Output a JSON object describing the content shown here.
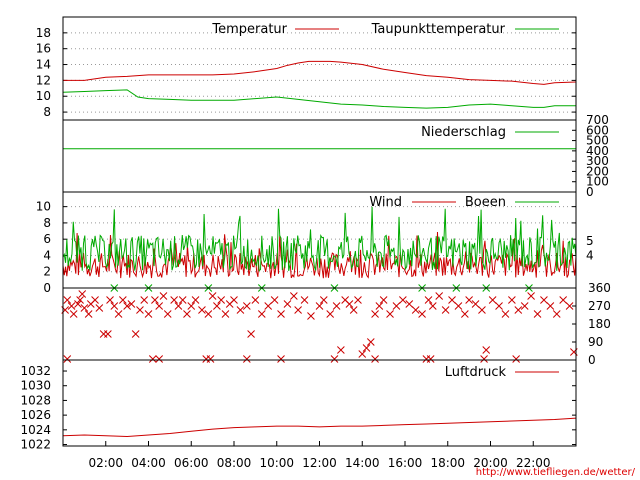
{
  "source_url": "http://www.tiefliegen.de/wetter/",
  "colors": {
    "red": "#cc0000",
    "green": "#00aa00",
    "grid": "#999999",
    "frame": "#000000"
  },
  "x_axis": {
    "unit": "hours",
    "range": [
      0,
      24
    ],
    "ticks": [
      {
        "h": 2,
        "label": "02:00"
      },
      {
        "h": 4,
        "label": "04:00"
      },
      {
        "h": 6,
        "label": "06:00"
      },
      {
        "h": 8,
        "label": "08:00"
      },
      {
        "h": 10,
        "label": "10:00"
      },
      {
        "h": 12,
        "label": "12:00"
      },
      {
        "h": 14,
        "label": "14:00"
      },
      {
        "h": 16,
        "label": "16:00"
      },
      {
        "h": 18,
        "label": "18:00"
      },
      {
        "h": 20,
        "label": "20:00"
      },
      {
        "h": 22,
        "label": "22:00"
      }
    ]
  },
  "chart_data": [
    {
      "type": "line",
      "id": "temp",
      "ylim": [
        7,
        20
      ],
      "yticks": [
        8,
        10,
        12,
        14,
        16,
        18
      ],
      "grid": true,
      "legend_position": "top-right",
      "series": [
        {
          "name": "Temperatur",
          "color": "#cc0000",
          "x": [
            0,
            1,
            2,
            3,
            4,
            5,
            6,
            7,
            8,
            9,
            10,
            10.5,
            11,
            11.5,
            12,
            12.5,
            13,
            14,
            15,
            16,
            17,
            18,
            19,
            20,
            21,
            22,
            22.5,
            23,
            24
          ],
          "y": [
            12.0,
            12.0,
            12.4,
            12.5,
            12.7,
            12.7,
            12.7,
            12.7,
            12.8,
            13.1,
            13.5,
            13.9,
            14.2,
            14.4,
            14.4,
            14.4,
            14.3,
            14.0,
            13.4,
            13.0,
            12.6,
            12.4,
            12.1,
            12.0,
            11.9,
            11.6,
            11.5,
            11.7,
            11.8
          ]
        },
        {
          "name": "Taupunkttemperatur",
          "color": "#00aa00",
          "x": [
            0,
            1,
            2,
            3,
            3.5,
            4,
            5,
            6,
            7,
            8,
            9,
            10,
            11,
            12,
            13,
            14,
            15,
            16,
            17,
            18,
            19,
            20,
            21,
            22,
            22.5,
            23,
            24
          ],
          "y": [
            10.5,
            10.6,
            10.7,
            10.8,
            9.9,
            9.7,
            9.6,
            9.5,
            9.5,
            9.5,
            9.7,
            9.9,
            9.6,
            9.3,
            9.0,
            8.9,
            8.7,
            8.6,
            8.5,
            8.6,
            8.9,
            9.0,
            8.8,
            8.6,
            8.6,
            8.8,
            8.8
          ]
        }
      ]
    },
    {
      "type": "line",
      "id": "rain",
      "ylim": [
        0,
        700
      ],
      "yticks": [
        0,
        100,
        200,
        300,
        400,
        500,
        600,
        700
      ],
      "grid": false,
      "legend_position": "top-right",
      "series": [
        {
          "name": "Niederschlag",
          "color": "#00aa00",
          "x": [
            0,
            24
          ],
          "y": [
            420,
            420
          ]
        }
      ]
    },
    {
      "type": "line",
      "id": "wind",
      "ylim": [
        0,
        11.8
      ],
      "yticks": [
        0,
        2,
        4,
        6,
        8,
        10
      ],
      "right_labels": [
        {
          "value": 4,
          "label": "4"
        },
        {
          "value": 5.8,
          "label": "5"
        }
      ],
      "grid": true,
      "legend_position": "top-right",
      "series": [
        {
          "name": "Wind",
          "color": "#cc0000",
          "pattern": "noisy",
          "mean": 2.8,
          "amplitude": 1.6
        },
        {
          "name": "Boeen",
          "color": "#00aa00",
          "pattern": "noisy",
          "mean": 4.3,
          "amplitude": 2.2
        }
      ]
    },
    {
      "type": "scatter",
      "id": "direction",
      "ylim": [
        0,
        360
      ],
      "right_ticks": [
        0,
        90,
        180,
        270,
        360
      ],
      "grid": false,
      "marker": "x",
      "color": "#cc0000",
      "points": [
        [
          0.1,
          250
        ],
        [
          0.2,
          300
        ],
        [
          0.4,
          270
        ],
        [
          0.5,
          230
        ],
        [
          0.7,
          280
        ],
        [
          0.8,
          300
        ],
        [
          0.9,
          330
        ],
        [
          1.0,
          260
        ],
        [
          1.2,
          230
        ],
        [
          1.3,
          280
        ],
        [
          1.5,
          300
        ],
        [
          1.7,
          260
        ],
        [
          1.9,
          130
        ],
        [
          2.1,
          130
        ],
        [
          2.2,
          300
        ],
        [
          2.4,
          270
        ],
        [
          2.6,
          230
        ],
        [
          2.8,
          300
        ],
        [
          3.0,
          270
        ],
        [
          3.2,
          280
        ],
        [
          3.4,
          130
        ],
        [
          3.6,
          250
        ],
        [
          3.8,
          300
        ],
        [
          4.0,
          230
        ],
        [
          4.3,
          300
        ],
        [
          4.5,
          270
        ],
        [
          4.7,
          320
        ],
        [
          4.9,
          230
        ],
        [
          5.2,
          300
        ],
        [
          5.4,
          270
        ],
        [
          5.6,
          300
        ],
        [
          5.8,
          230
        ],
        [
          6.0,
          270
        ],
        [
          6.2,
          300
        ],
        [
          6.5,
          250
        ],
        [
          6.8,
          230
        ],
        [
          7.0,
          320
        ],
        [
          7.2,
          270
        ],
        [
          7.4,
          300
        ],
        [
          7.6,
          230
        ],
        [
          7.8,
          280
        ],
        [
          8.0,
          300
        ],
        [
          8.3,
          250
        ],
        [
          8.6,
          270
        ],
        [
          8.8,
          130
        ],
        [
          9.0,
          300
        ],
        [
          9.3,
          230
        ],
        [
          9.6,
          270
        ],
        [
          9.9,
          300
        ],
        [
          10.2,
          230
        ],
        [
          10.5,
          280
        ],
        [
          10.8,
          320
        ],
        [
          11.0,
          250
        ],
        [
          11.3,
          300
        ],
        [
          11.6,
          220
        ],
        [
          12.0,
          270
        ],
        [
          12.2,
          300
        ],
        [
          12.5,
          230
        ],
        [
          12.8,
          270
        ],
        [
          13.0,
          50
        ],
        [
          13.2,
          300
        ],
        [
          13.4,
          280
        ],
        [
          13.6,
          250
        ],
        [
          13.8,
          300
        ],
        [
          14.0,
          30
        ],
        [
          14.2,
          60
        ],
        [
          14.4,
          90
        ],
        [
          14.6,
          230
        ],
        [
          14.8,
          270
        ],
        [
          15.0,
          300
        ],
        [
          15.3,
          230
        ],
        [
          15.6,
          270
        ],
        [
          15.9,
          300
        ],
        [
          16.2,
          280
        ],
        [
          16.5,
          250
        ],
        [
          16.8,
          230
        ],
        [
          17.1,
          300
        ],
        [
          17.3,
          270
        ],
        [
          17.6,
          320
        ],
        [
          17.9,
          250
        ],
        [
          18.2,
          300
        ],
        [
          18.5,
          270
        ],
        [
          18.8,
          230
        ],
        [
          19.0,
          300
        ],
        [
          19.3,
          280
        ],
        [
          19.6,
          250
        ],
        [
          19.8,
          50
        ],
        [
          20.1,
          300
        ],
        [
          20.4,
          270
        ],
        [
          20.7,
          230
        ],
        [
          21.0,
          300
        ],
        [
          21.3,
          250
        ],
        [
          21.6,
          270
        ],
        [
          21.9,
          320
        ],
        [
          22.2,
          230
        ],
        [
          22.5,
          300
        ],
        [
          22.8,
          270
        ],
        [
          23.1,
          230
        ],
        [
          23.4,
          300
        ],
        [
          23.7,
          270
        ],
        [
          0.2,
          5
        ],
        [
          4.2,
          5
        ],
        [
          4.5,
          5
        ],
        [
          6.7,
          5
        ],
        [
          6.9,
          5
        ],
        [
          8.6,
          5
        ],
        [
          10.2,
          5
        ],
        [
          12.7,
          5
        ],
        [
          14.6,
          5
        ],
        [
          17.0,
          5
        ],
        [
          17.2,
          5
        ],
        [
          19.7,
          5
        ],
        [
          21.2,
          5
        ],
        [
          23.9,
          40
        ]
      ],
      "green_points": [
        [
          2.4,
          360
        ],
        [
          4.0,
          360
        ],
        [
          6.8,
          360
        ],
        [
          9.3,
          360
        ],
        [
          12.7,
          360
        ],
        [
          16.8,
          360
        ],
        [
          18.4,
          360
        ],
        [
          19.8,
          360
        ],
        [
          21.8,
          360
        ]
      ]
    },
    {
      "type": "line",
      "id": "pressure",
      "ylim": [
        1021.8,
        1033.5
      ],
      "yticks": [
        1022,
        1024,
        1026,
        1028,
        1030,
        1032
      ],
      "grid": false,
      "legend_position": "top-right",
      "series": [
        {
          "name": "Luftdruck",
          "color": "#cc0000",
          "x": [
            0,
            1,
            2,
            3,
            4,
            5,
            6,
            7,
            8,
            9,
            10,
            11,
            12,
            13,
            14,
            15,
            16,
            17,
            18,
            19,
            20,
            21,
            22,
            23,
            24
          ],
          "y": [
            1023.2,
            1023.3,
            1023.2,
            1023.1,
            1023.3,
            1023.5,
            1023.8,
            1024.1,
            1024.3,
            1024.4,
            1024.5,
            1024.5,
            1024.4,
            1024.5,
            1024.5,
            1024.6,
            1024.7,
            1024.8,
            1024.9,
            1025.0,
            1025.1,
            1025.2,
            1025.3,
            1025.4,
            1025.6
          ]
        }
      ]
    }
  ]
}
